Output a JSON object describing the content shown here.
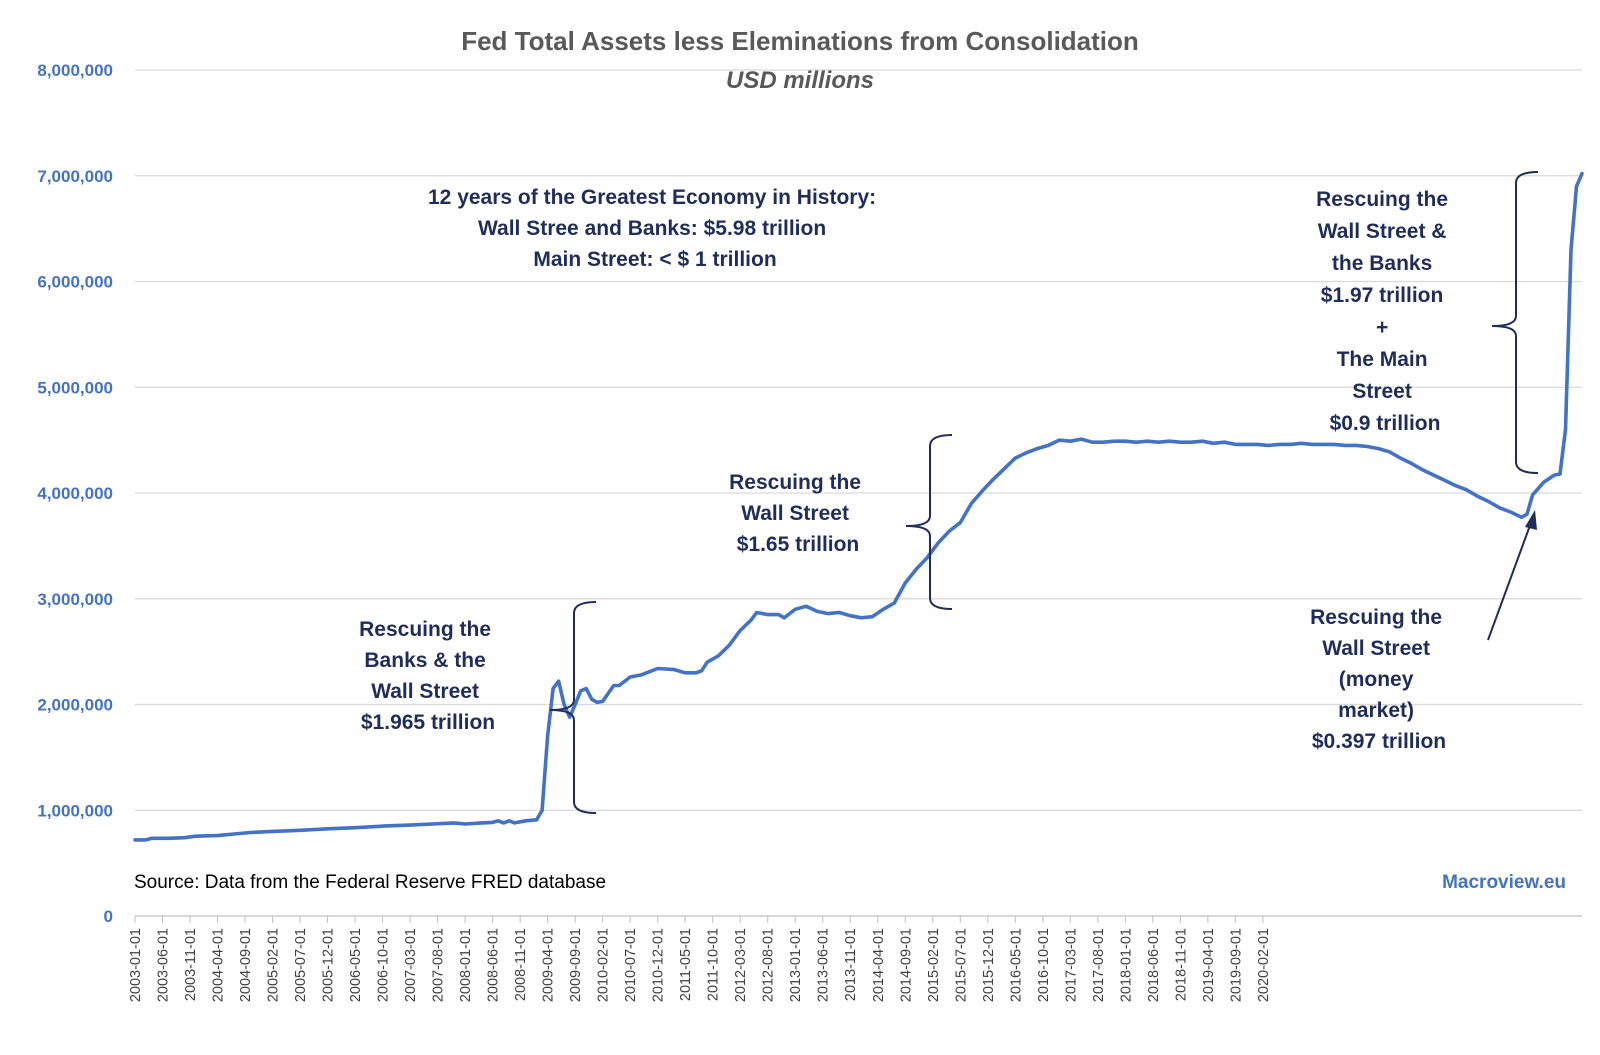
{
  "chart_data": {
    "type": "line",
    "title": "Fed Total Assets less Eleminations from Consolidation",
    "subtitle": "USD millions",
    "ylim": [
      0,
      8000000
    ],
    "y_ticks": [
      "0",
      "1,000,000",
      "2,000,000",
      "3,000,000",
      "4,000,000",
      "5,000,000",
      "6,000,000",
      "7,000,000",
      "8,000,000"
    ],
    "x_tick_labels": [
      "2003-01-01",
      "2003-06-01",
      "2003-11-01",
      "2004-04-01",
      "2004-09-01",
      "2005-02-01",
      "2005-07-01",
      "2005-12-01",
      "2006-05-01",
      "2006-10-01",
      "2007-03-01",
      "2007-08-01",
      "2008-01-01",
      "2008-06-01",
      "2008-11-01",
      "2009-04-01",
      "2009-09-01",
      "2010-02-01",
      "2010-07-01",
      "2010-12-01",
      "2011-05-01",
      "2011-10-01",
      "2012-03-01",
      "2012-08-01",
      "2013-01-01",
      "2013-06-01",
      "2013-11-01",
      "2014-04-01",
      "2014-09-01",
      "2015-02-01",
      "2015-07-01",
      "2015-12-01",
      "2016-05-01",
      "2016-10-01",
      "2017-03-01",
      "2017-08-01",
      "2018-01-01",
      "2018-06-01",
      "2018-11-01",
      "2019-04-01",
      "2019-09-01",
      "2020-02-01"
    ],
    "grid": true,
    "series": [
      {
        "name": "Fed Total Assets less Eleminations from Consolidation",
        "color": "#4472C4",
        "points": [
          [
            0,
            720000
          ],
          [
            2,
            720000
          ],
          [
            3,
            735000
          ],
          [
            6,
            735000
          ],
          [
            9,
            740000
          ],
          [
            11,
            755000
          ],
          [
            15,
            760000
          ],
          [
            18,
            775000
          ],
          [
            21,
            790000
          ],
          [
            25,
            800000
          ],
          [
            30,
            810000
          ],
          [
            35,
            825000
          ],
          [
            40,
            835000
          ],
          [
            45,
            850000
          ],
          [
            50,
            860000
          ],
          [
            54,
            870000
          ],
          [
            58,
            880000
          ],
          [
            60,
            870000
          ],
          [
            63,
            880000
          ],
          [
            65,
            885000
          ],
          [
            66,
            900000
          ],
          [
            67,
            880000
          ],
          [
            68,
            900000
          ],
          [
            69,
            880000
          ],
          [
            71,
            900000
          ],
          [
            73,
            910000
          ],
          [
            74,
            1000000
          ],
          [
            75,
            1700000
          ],
          [
            76,
            2150000
          ],
          [
            77,
            2220000
          ],
          [
            78,
            2000000
          ],
          [
            79,
            1880000
          ],
          [
            80,
            2000000
          ],
          [
            81,
            2130000
          ],
          [
            82,
            2150000
          ],
          [
            83,
            2050000
          ],
          [
            84,
            2020000
          ],
          [
            85,
            2030000
          ],
          [
            87,
            2180000
          ],
          [
            88,
            2180000
          ],
          [
            90,
            2260000
          ],
          [
            92,
            2280000
          ],
          [
            95,
            2340000
          ],
          [
            98,
            2330000
          ],
          [
            100,
            2300000
          ],
          [
            102,
            2300000
          ],
          [
            103,
            2320000
          ],
          [
            104,
            2400000
          ],
          [
            106,
            2460000
          ],
          [
            108,
            2560000
          ],
          [
            110,
            2700000
          ],
          [
            112,
            2800000
          ],
          [
            113,
            2870000
          ],
          [
            115,
            2850000
          ],
          [
            117,
            2850000
          ],
          [
            118,
            2820000
          ],
          [
            120,
            2900000
          ],
          [
            122,
            2930000
          ],
          [
            124,
            2880000
          ],
          [
            126,
            2860000
          ],
          [
            128,
            2870000
          ],
          [
            130,
            2840000
          ],
          [
            132,
            2820000
          ],
          [
            134,
            2830000
          ],
          [
            136,
            2900000
          ],
          [
            138,
            2960000
          ],
          [
            140,
            3150000
          ],
          [
            142,
            3280000
          ],
          [
            144,
            3390000
          ],
          [
            146,
            3530000
          ],
          [
            148,
            3640000
          ],
          [
            150,
            3720000
          ],
          [
            152,
            3900000
          ],
          [
            154,
            4020000
          ],
          [
            156,
            4130000
          ],
          [
            158,
            4230000
          ],
          [
            160,
            4330000
          ],
          [
            162,
            4380000
          ],
          [
            164,
            4420000
          ],
          [
            166,
            4450000
          ],
          [
            168,
            4500000
          ],
          [
            170,
            4490000
          ],
          [
            172,
            4510000
          ],
          [
            174,
            4480000
          ],
          [
            176,
            4480000
          ],
          [
            178,
            4490000
          ],
          [
            180,
            4490000
          ],
          [
            182,
            4480000
          ],
          [
            184,
            4490000
          ],
          [
            186,
            4480000
          ],
          [
            188,
            4490000
          ],
          [
            190,
            4480000
          ],
          [
            192,
            4480000
          ],
          [
            194,
            4490000
          ],
          [
            196,
            4470000
          ],
          [
            198,
            4480000
          ],
          [
            200,
            4460000
          ],
          [
            202,
            4460000
          ],
          [
            204,
            4460000
          ],
          [
            206,
            4450000
          ],
          [
            208,
            4460000
          ],
          [
            210,
            4460000
          ],
          [
            212,
            4470000
          ],
          [
            214,
            4460000
          ],
          [
            216,
            4460000
          ],
          [
            218,
            4460000
          ],
          [
            220,
            4450000
          ],
          [
            222,
            4450000
          ],
          [
            224,
            4440000
          ],
          [
            226,
            4420000
          ],
          [
            228,
            4390000
          ],
          [
            230,
            4330000
          ],
          [
            232,
            4280000
          ],
          [
            234,
            4220000
          ],
          [
            236,
            4170000
          ],
          [
            238,
            4120000
          ],
          [
            240,
            4070000
          ],
          [
            242,
            4030000
          ],
          [
            244,
            3970000
          ],
          [
            246,
            3920000
          ],
          [
            248,
            3860000
          ],
          [
            250,
            3820000
          ],
          [
            252,
            3770000
          ],
          [
            253,
            3800000
          ],
          [
            254,
            3980000
          ],
          [
            256,
            4100000
          ],
          [
            258,
            4170000
          ],
          [
            259,
            4180000
          ],
          [
            260,
            4600000
          ],
          [
            261,
            6300000
          ],
          [
            262,
            6900000
          ],
          [
            263,
            7020000
          ]
        ]
      }
    ],
    "annotations": {
      "headline": [
        "12 years of the Greatest Economy in History:",
        "Wall Stree and Banks: $5.98 trillion",
        "Main Street: < $ 1 trillion"
      ],
      "rescue_2008": [
        "Rescuing the",
        "Banks & the",
        "Wall Street",
        "$1.965 trillion"
      ],
      "rescue_2010": [
        "Rescuing the",
        "Wall Street",
        "$1.65 trillion"
      ],
      "rescue_2020": [
        "Rescuing the",
        "Wall Street &",
        "the Banks",
        "$1.97 trillion",
        "+",
        "The Main",
        "Street",
        "$0.9 trillion"
      ],
      "rescue_2019": [
        "Rescuing the",
        "Wall Street",
        "(money",
        "market)",
        "$0.397 trillion"
      ]
    },
    "source": "Source: Data from the Federal Reserve FRED database",
    "brand": "Macroview.eu"
  }
}
